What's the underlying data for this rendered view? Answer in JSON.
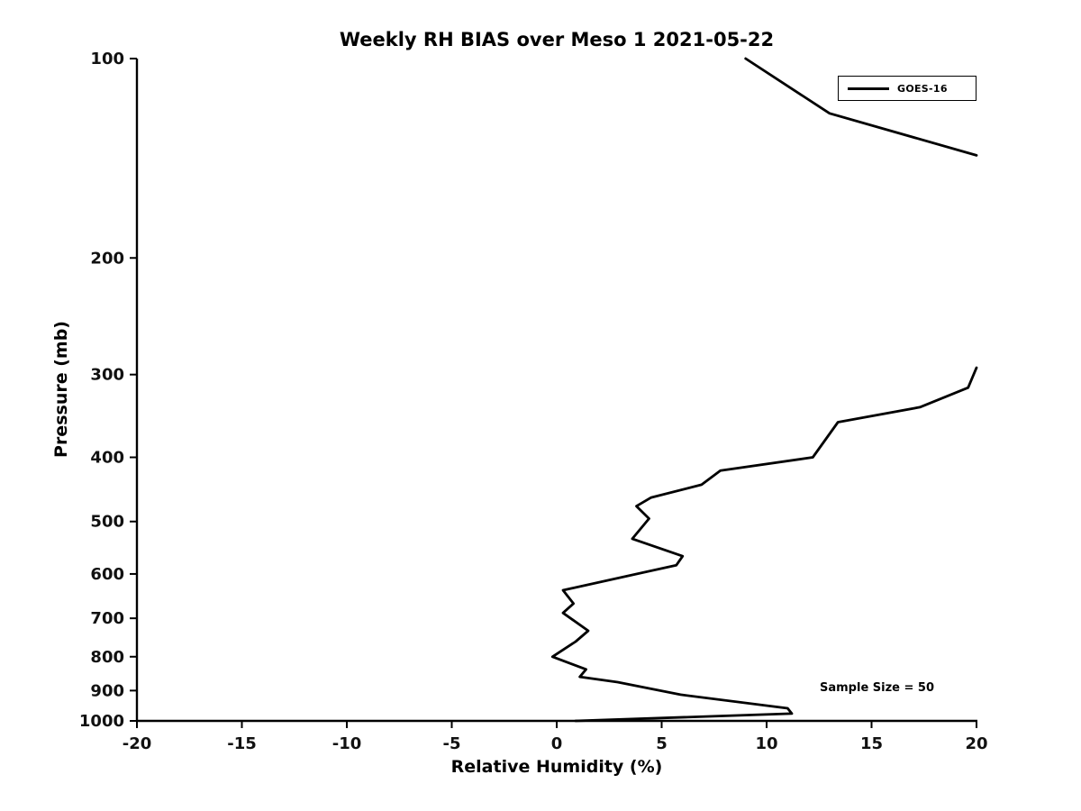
{
  "chart_data": {
    "type": "line",
    "title": "Weekly RH BIAS over Meso 1 2021-05-22",
    "xlabel": "Relative Humidity (%)",
    "ylabel": "Pressure (mb)",
    "xlim": [
      -20,
      20
    ],
    "ylim": [
      100,
      1000
    ],
    "y_scale": "log",
    "y_inverted": true,
    "grid": false,
    "x_ticks": [
      -20,
      -15,
      -10,
      -5,
      0,
      5,
      10,
      15,
      20
    ],
    "y_ticks": [
      100,
      200,
      300,
      400,
      500,
      600,
      700,
      800,
      900,
      1000
    ],
    "legend": {
      "position": "top-right",
      "entries": [
        {
          "label": "GOES-16",
          "color": "#000000"
        }
      ]
    },
    "annotation": "Sample Size = 50",
    "series": [
      {
        "name": "GOES-16",
        "color": "#000000",
        "line_width": 2.8,
        "note": "points are [rh_bias_percent, pressure_mb]; curve exits plot (>20%) between ~140 mb and ~293 mb",
        "segments": [
          [
            [
              9.0,
              100
            ],
            [
              13.0,
              121
            ],
            [
              20.0,
              140
            ]
          ],
          [
            [
              20.0,
              293
            ],
            [
              19.6,
              314
            ],
            [
              17.3,
              336
            ],
            [
              13.4,
              354
            ],
            [
              12.2,
              400
            ],
            [
              7.8,
              419
            ],
            [
              6.9,
              440
            ],
            [
              4.5,
              460
            ],
            [
              3.8,
              474
            ],
            [
              4.4,
              495
            ],
            [
              3.6,
              531
            ],
            [
              6.0,
              564
            ],
            [
              5.7,
              582
            ],
            [
              0.3,
              635
            ],
            [
              0.8,
              665
            ],
            [
              0.3,
              687
            ],
            [
              1.5,
              731
            ],
            [
              0.9,
              759
            ],
            [
              -0.2,
              800
            ],
            [
              1.4,
              836
            ],
            [
              1.1,
              858
            ],
            [
              2.9,
              874
            ],
            [
              5.9,
              913
            ],
            [
              11.0,
              957
            ],
            [
              11.2,
              975
            ],
            [
              0.9,
              1000
            ]
          ]
        ]
      }
    ]
  }
}
